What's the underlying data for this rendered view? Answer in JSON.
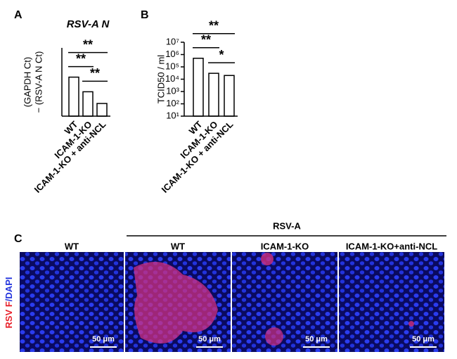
{
  "chart_data": [
    {
      "type": "bar",
      "panel": "A",
      "title": "RSV-A N",
      "ylabel": [
        "(GAPDH Ct)",
        "− (RSV-A N Ct)"
      ],
      "categories": [
        "WT",
        "ICAM-1-KO",
        "ICAM-1-KO + anti-NCL"
      ],
      "values": [
        4.0,
        2.5,
        1.3
      ],
      "color": "#ffffff",
      "ylim": [
        0,
        7
      ],
      "log": false,
      "annotations": [
        {
          "text": "**",
          "from": 0,
          "to": 1
        },
        {
          "text": "**",
          "from": 1,
          "to": 2
        },
        {
          "text": "**",
          "from": 0,
          "to": 2
        }
      ]
    },
    {
      "type": "bar",
      "panel": "B",
      "ylabel": [
        "TCID50 / ml"
      ],
      "categories": [
        "WT",
        "ICAM-1-KO",
        "ICAM-1-KO + anti-NCL"
      ],
      "values": [
        500000,
        30000,
        20000
      ],
      "color": "#ffffff",
      "ylim": [
        10,
        10000000
      ],
      "log": true,
      "yticks": [
        {
          "value": 10,
          "label": "10¹"
        },
        {
          "value": 100,
          "label": "10²"
        },
        {
          "value": 1000,
          "label": "10³"
        },
        {
          "value": 10000,
          "label": "10⁴"
        },
        {
          "value": 100000,
          "label": "10⁵"
        },
        {
          "value": 1000000,
          "label": "10⁶"
        },
        {
          "value": 10000000,
          "label": "10⁷"
        }
      ],
      "annotations": [
        {
          "text": "**",
          "from": 0,
          "to": 1
        },
        {
          "text": "*",
          "from": 1,
          "to": 2
        },
        {
          "text": "**",
          "from": 0,
          "to": 2
        }
      ]
    }
  ],
  "panel_c": {
    "panel": "C",
    "group_label": "RSV-A",
    "columns": [
      "WT",
      "WT",
      "ICAM-1-KO",
      "ICAM-1-KO+anti-NCL"
    ],
    "scale_bar": "50 μm",
    "stain_labels": [
      "RSV F",
      "/DAPI"
    ]
  }
}
